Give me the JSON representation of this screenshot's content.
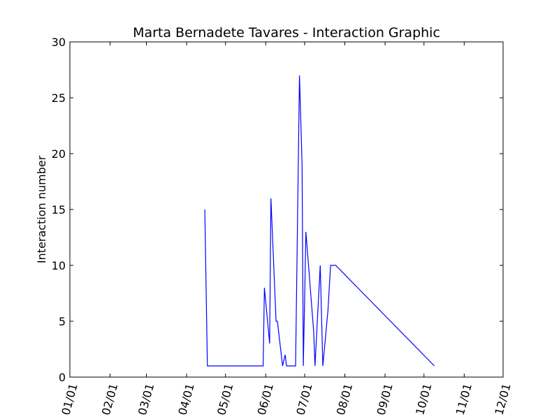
{
  "chart_data": {
    "type": "line",
    "title": "Marta Bernadete Tavares - Interaction Graphic",
    "xlabel": "",
    "ylabel": "Interaction number",
    "x_is_date": true,
    "xlim": [
      "01/01",
      "12/01"
    ],
    "ylim": [
      0,
      30
    ],
    "x_ticks": [
      "01/01",
      "02/01",
      "03/01",
      "04/01",
      "05/01",
      "06/01",
      "07/01",
      "08/01",
      "09/01",
      "10/01",
      "11/01",
      "12/01"
    ],
    "y_ticks": [
      0,
      5,
      10,
      15,
      20,
      25,
      30
    ],
    "grid": false,
    "legend": "none",
    "line_color": "#0000ff",
    "series": [
      {
        "x": [
          "04/15",
          "04/17",
          "05/30",
          "05/31",
          "06/04",
          "06/05",
          "06/09",
          "06/10",
          "06/14",
          "06/16",
          "06/17",
          "06/24",
          "06/27",
          "06/29",
          "06/30",
          "07/02",
          "07/08",
          "07/09",
          "07/13",
          "07/15",
          "07/19",
          "07/21",
          "07/25",
          "10/09"
        ],
        "y": [
          15,
          1,
          1,
          8,
          3,
          16,
          5,
          5,
          1,
          2,
          1,
          1,
          27,
          19,
          1,
          13,
          4,
          1,
          10,
          1,
          6,
          10,
          10,
          1
        ]
      }
    ]
  }
}
